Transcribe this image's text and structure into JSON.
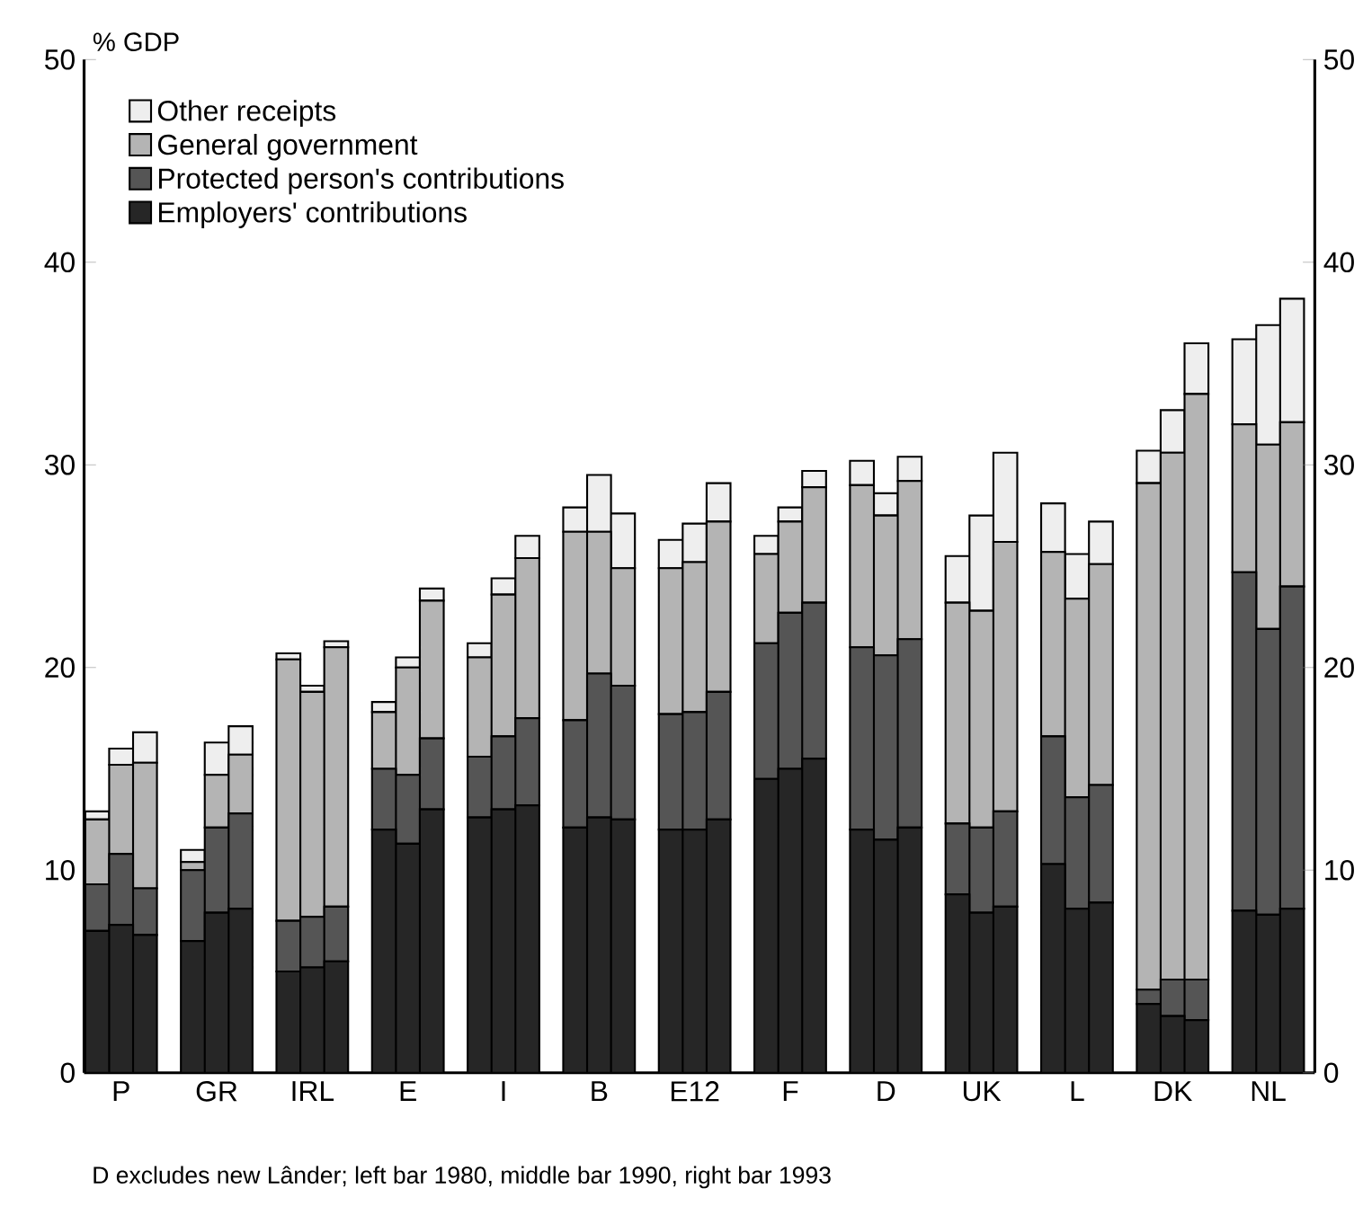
{
  "chart_data": {
    "type": "bar",
    "stacked": true,
    "ylabel": "% GDP",
    "categories": [
      null,
      "P",
      null,
      null,
      "GR",
      null,
      null,
      "IRL",
      null,
      null,
      "E",
      null,
      null,
      "I",
      null,
      null,
      "B",
      null,
      null,
      "E12",
      null,
      null,
      "F",
      null,
      null,
      "D",
      null,
      null,
      "UK",
      null,
      null,
      "L",
      null,
      null,
      "DK",
      null,
      null,
      "NL",
      null
    ],
    "series": [
      {
        "name": "Employers' contributions",
        "color": "#262626",
        "values": [
          7.0,
          7.3,
          6.8,
          6.5,
          7.9,
          8.1,
          5.0,
          5.2,
          5.5,
          12.0,
          11.3,
          13.0,
          12.6,
          13.0,
          13.2,
          12.1,
          12.6,
          12.5,
          12.0,
          12.0,
          12.5,
          14.5,
          15.0,
          15.5,
          12.0,
          11.5,
          12.1,
          8.8,
          7.9,
          8.2,
          10.3,
          8.1,
          8.4,
          3.4,
          2.8,
          2.6,
          8.0,
          7.8,
          8.1
        ]
      },
      {
        "name": "Protected person's contributions",
        "color": "#555555",
        "values": [
          2.3,
          3.5,
          2.3,
          3.5,
          4.2,
          4.7,
          2.5,
          2.5,
          2.7,
          3.0,
          3.4,
          3.5,
          3.0,
          3.6,
          4.3,
          5.3,
          7.1,
          6.6,
          5.7,
          5.8,
          6.3,
          6.7,
          7.7,
          7.7,
          9.0,
          9.1,
          9.3,
          3.5,
          4.2,
          4.7,
          6.3,
          5.5,
          5.8,
          0.7,
          1.8,
          2.0,
          16.7,
          14.1,
          15.9
        ]
      },
      {
        "name": "General government",
        "color": "#b4b4b4",
        "values": [
          3.2,
          4.4,
          6.2,
          0.4,
          2.6,
          2.9,
          12.9,
          11.1,
          12.8,
          2.8,
          5.3,
          6.8,
          4.9,
          7.0,
          7.9,
          9.3,
          7.0,
          5.8,
          7.2,
          7.4,
          8.4,
          4.4,
          4.5,
          5.7,
          8.0,
          6.9,
          7.8,
          10.9,
          10.7,
          13.3,
          9.1,
          9.8,
          10.9,
          25.0,
          26.0,
          28.9,
          7.3,
          9.1,
          8.1
        ]
      },
      {
        "name": "Other receipts",
        "color": "#eeeeee",
        "values": [
          0.4,
          0.8,
          1.5,
          0.6,
          1.6,
          1.4,
          0.3,
          0.3,
          0.3,
          0.5,
          0.5,
          0.6,
          0.7,
          0.8,
          1.1,
          1.2,
          2.8,
          2.7,
          1.4,
          1.9,
          1.9,
          0.9,
          0.7,
          0.8,
          1.2,
          1.1,
          1.2,
          2.3,
          4.7,
          4.4,
          2.4,
          2.2,
          2.1,
          1.6,
          2.1,
          2.5,
          4.2,
          5.9,
          6.1
        ]
      }
    ],
    "ylim": [
      0,
      50
    ],
    "yticks": [
      0,
      10,
      20,
      30,
      40,
      50
    ],
    "y2lim": [
      0,
      50
    ],
    "y2ticks": [
      0,
      10,
      20,
      30,
      40,
      50
    ],
    "legend": "top left",
    "grid": false,
    "annotations": [
      "D excludes new Lânder; left bar 1980, middle bar 1990, right bar 1993"
    ]
  }
}
